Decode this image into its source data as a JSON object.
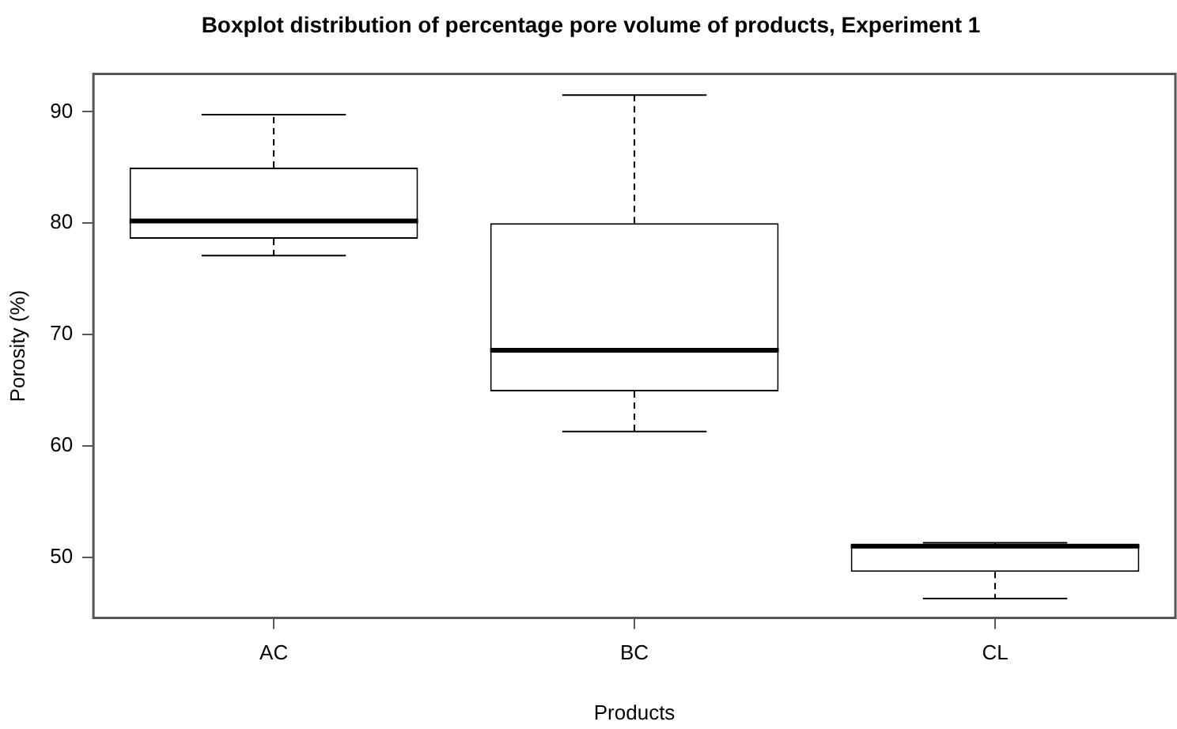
{
  "chart_data": {
    "type": "box",
    "title": "Boxplot distribution of percentage pore volume of products, Experiment 1",
    "xlabel": "Products",
    "ylabel": "Porosity (%)",
    "categories": [
      "AC",
      "BC",
      "CL"
    ],
    "boxes": [
      {
        "low": 77.1,
        "q1": 78.6,
        "median": 80.2,
        "q3": 85.0,
        "high": 89.75
      },
      {
        "low": 61.3,
        "q1": 64.9,
        "median": 68.6,
        "q3": 80.0,
        "high": 91.5
      },
      {
        "low": 46.3,
        "q1": 48.7,
        "median": 51.0,
        "q3": 51.1,
        "high": 51.3
      }
    ],
    "ylim": [
      44.55,
      93.4
    ],
    "yticks": [
      50,
      60,
      70,
      80,
      90
    ]
  }
}
